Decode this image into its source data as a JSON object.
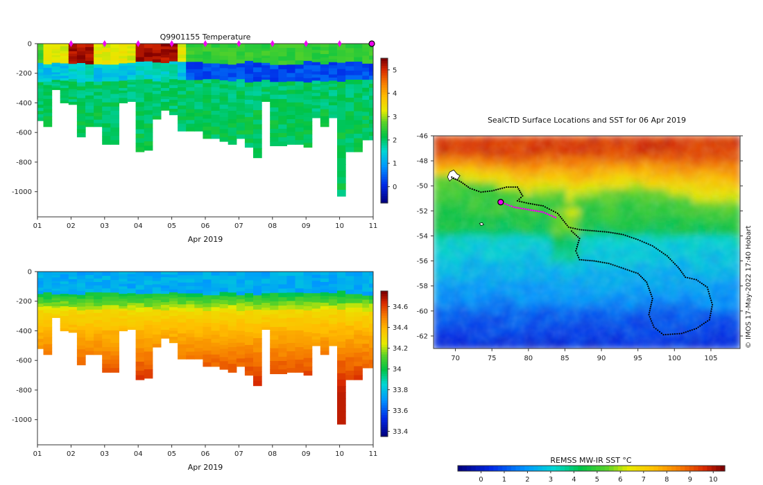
{
  "chart_data": [
    {
      "type": "heatmap",
      "id": "temperature-profiles",
      "title": "Q9901155  Temperature",
      "xlabel": "Apr 2019",
      "ylabel": "",
      "x_ticks": [
        "01",
        "02",
        "03",
        "04",
        "05",
        "06",
        "07",
        "08",
        "09",
        "10",
        "11"
      ],
      "x_range": [
        1,
        11
      ],
      "y_ticks": [
        0,
        -200,
        -400,
        -600,
        -800,
        -1000
      ],
      "y_range": [
        0,
        -1170
      ],
      "colorbar_ticks": [
        0,
        1,
        2,
        3,
        4,
        5
      ],
      "colorbar_range": [
        -0.7,
        5.5
      ],
      "surface_markers_day": [
        2,
        3,
        4,
        5,
        6,
        7,
        8,
        9,
        10
      ],
      "latest_profile_day": 11,
      "profiles": [
        {
          "day": 1.05,
          "depth": 520
        },
        {
          "day": 1.3,
          "depth": 560
        },
        {
          "day": 1.55,
          "depth": 310
        },
        {
          "day": 1.8,
          "depth": 400
        },
        {
          "day": 2.05,
          "depth": 410
        },
        {
          "day": 2.3,
          "depth": 630
        },
        {
          "day": 2.55,
          "depth": 560
        },
        {
          "day": 2.8,
          "depth": 560
        },
        {
          "day": 3.05,
          "depth": 680
        },
        {
          "day": 3.3,
          "depth": 680
        },
        {
          "day": 3.55,
          "depth": 400
        },
        {
          "day": 3.8,
          "depth": 390
        },
        {
          "day": 4.05,
          "depth": 730
        },
        {
          "day": 4.3,
          "depth": 720
        },
        {
          "day": 4.55,
          "depth": 510
        },
        {
          "day": 4.8,
          "depth": 450
        },
        {
          "day": 5.05,
          "depth": 480
        },
        {
          "day": 5.3,
          "depth": 590
        },
        {
          "day": 5.55,
          "depth": 590
        },
        {
          "day": 5.8,
          "depth": 590
        },
        {
          "day": 6.05,
          "depth": 640
        },
        {
          "day": 6.3,
          "depth": 640
        },
        {
          "day": 6.55,
          "depth": 660
        },
        {
          "day": 6.8,
          "depth": 680
        },
        {
          "day": 7.05,
          "depth": 640
        },
        {
          "day": 7.3,
          "depth": 700
        },
        {
          "day": 7.55,
          "depth": 770
        },
        {
          "day": 7.8,
          "depth": 390
        },
        {
          "day": 8.05,
          "depth": 690
        },
        {
          "day": 8.3,
          "depth": 690
        },
        {
          "day": 8.55,
          "depth": 680
        },
        {
          "day": 8.8,
          "depth": 680
        },
        {
          "day": 9.05,
          "depth": 700
        },
        {
          "day": 9.3,
          "depth": 500
        },
        {
          "day": 9.55,
          "depth": 560
        },
        {
          "day": 9.8,
          "depth": 500
        },
        {
          "day": 10.05,
          "depth": 1030
        },
        {
          "day": 10.3,
          "depth": 730
        },
        {
          "day": 10.55,
          "depth": 730
        },
        {
          "day": 10.8,
          "depth": 650
        },
        {
          "day": 11.0,
          "depth": 650
        }
      ]
    },
    {
      "type": "heatmap",
      "id": "salinity-profiles",
      "title": "",
      "xlabel": "Apr 2019",
      "ylabel": "",
      "x_ticks": [
        "01",
        "02",
        "03",
        "04",
        "05",
        "06",
        "07",
        "08",
        "09",
        "10",
        "11"
      ],
      "x_range": [
        1,
        11
      ],
      "y_ticks": [
        0,
        -200,
        -400,
        -600,
        -800,
        -1000
      ],
      "y_range": [
        0,
        -1170
      ],
      "colorbar_ticks": [
        33.4,
        33.6,
        33.8,
        34,
        34.2,
        34.4,
        34.6
      ],
      "colorbar_range": [
        33.35,
        34.75
      ]
    },
    {
      "type": "heatmap",
      "id": "sst-map",
      "title": "SealCTD Surface Locations and SST for 06 Apr 2019",
      "x_ticks": [
        70,
        75,
        80,
        85,
        90,
        95,
        100,
        105
      ],
      "x_range": [
        67,
        109
      ],
      "y_ticks": [
        -46,
        -48,
        -50,
        -52,
        -54,
        -56,
        -58,
        -60,
        -62
      ],
      "y_range": [
        -46,
        -63
      ],
      "colorbar_label": "REMSS MW-IR SST °C",
      "colorbar_ticks": [
        0,
        1,
        2,
        3,
        4,
        5,
        6,
        7,
        8,
        9,
        10
      ],
      "colorbar_range": [
        -1,
        10.5
      ],
      "current_location": {
        "lon": 76.2,
        "lat": -51.3
      },
      "track": [
        [
          69.5,
          -49.3
        ],
        [
          70.8,
          -49.7
        ],
        [
          72.0,
          -50.2
        ],
        [
          73.5,
          -50.5
        ],
        [
          75.0,
          -50.4
        ],
        [
          77.0,
          -50.1
        ],
        [
          78.5,
          -50.1
        ],
        [
          79.2,
          -50.8
        ],
        [
          78.5,
          -51.2
        ],
        [
          80.0,
          -51.4
        ],
        [
          82.0,
          -51.6
        ],
        [
          84.0,
          -52.2
        ],
        [
          85.5,
          -53.3
        ],
        [
          87.0,
          -53.5
        ],
        [
          89.0,
          -53.6
        ],
        [
          91.0,
          -53.7
        ],
        [
          93.0,
          -53.9
        ],
        [
          95.0,
          -54.3
        ],
        [
          97.0,
          -54.8
        ],
        [
          99.0,
          -55.6
        ],
        [
          100.5,
          -56.5
        ],
        [
          101.5,
          -57.3
        ],
        [
          103.0,
          -57.5
        ],
        [
          104.5,
          -58.1
        ],
        [
          105.2,
          -59.5
        ],
        [
          104.8,
          -60.7
        ],
        [
          103.0,
          -61.4
        ],
        [
          101.0,
          -61.8
        ],
        [
          98.5,
          -61.9
        ],
        [
          97.2,
          -61.3
        ],
        [
          96.5,
          -60.3
        ],
        [
          97.0,
          -59.0
        ],
        [
          96.2,
          -57.7
        ],
        [
          95.0,
          -57.0
        ],
        [
          93.0,
          -56.6
        ],
        [
          91.0,
          -56.2
        ],
        [
          89.0,
          -56.0
        ],
        [
          87.0,
          -55.9
        ],
        [
          86.5,
          -55.2
        ],
        [
          87.0,
          -54.2
        ],
        [
          85.7,
          -53.5
        ]
      ],
      "recent_track": [
        [
          76.2,
          -51.3
        ],
        [
          78.0,
          -51.7
        ],
        [
          80.0,
          -51.9
        ],
        [
          82.0,
          -52.1
        ],
        [
          84.0,
          -52.6
        ]
      ]
    }
  ],
  "watermark": "© IMOS 17-May-2022 17:40 Hobart"
}
